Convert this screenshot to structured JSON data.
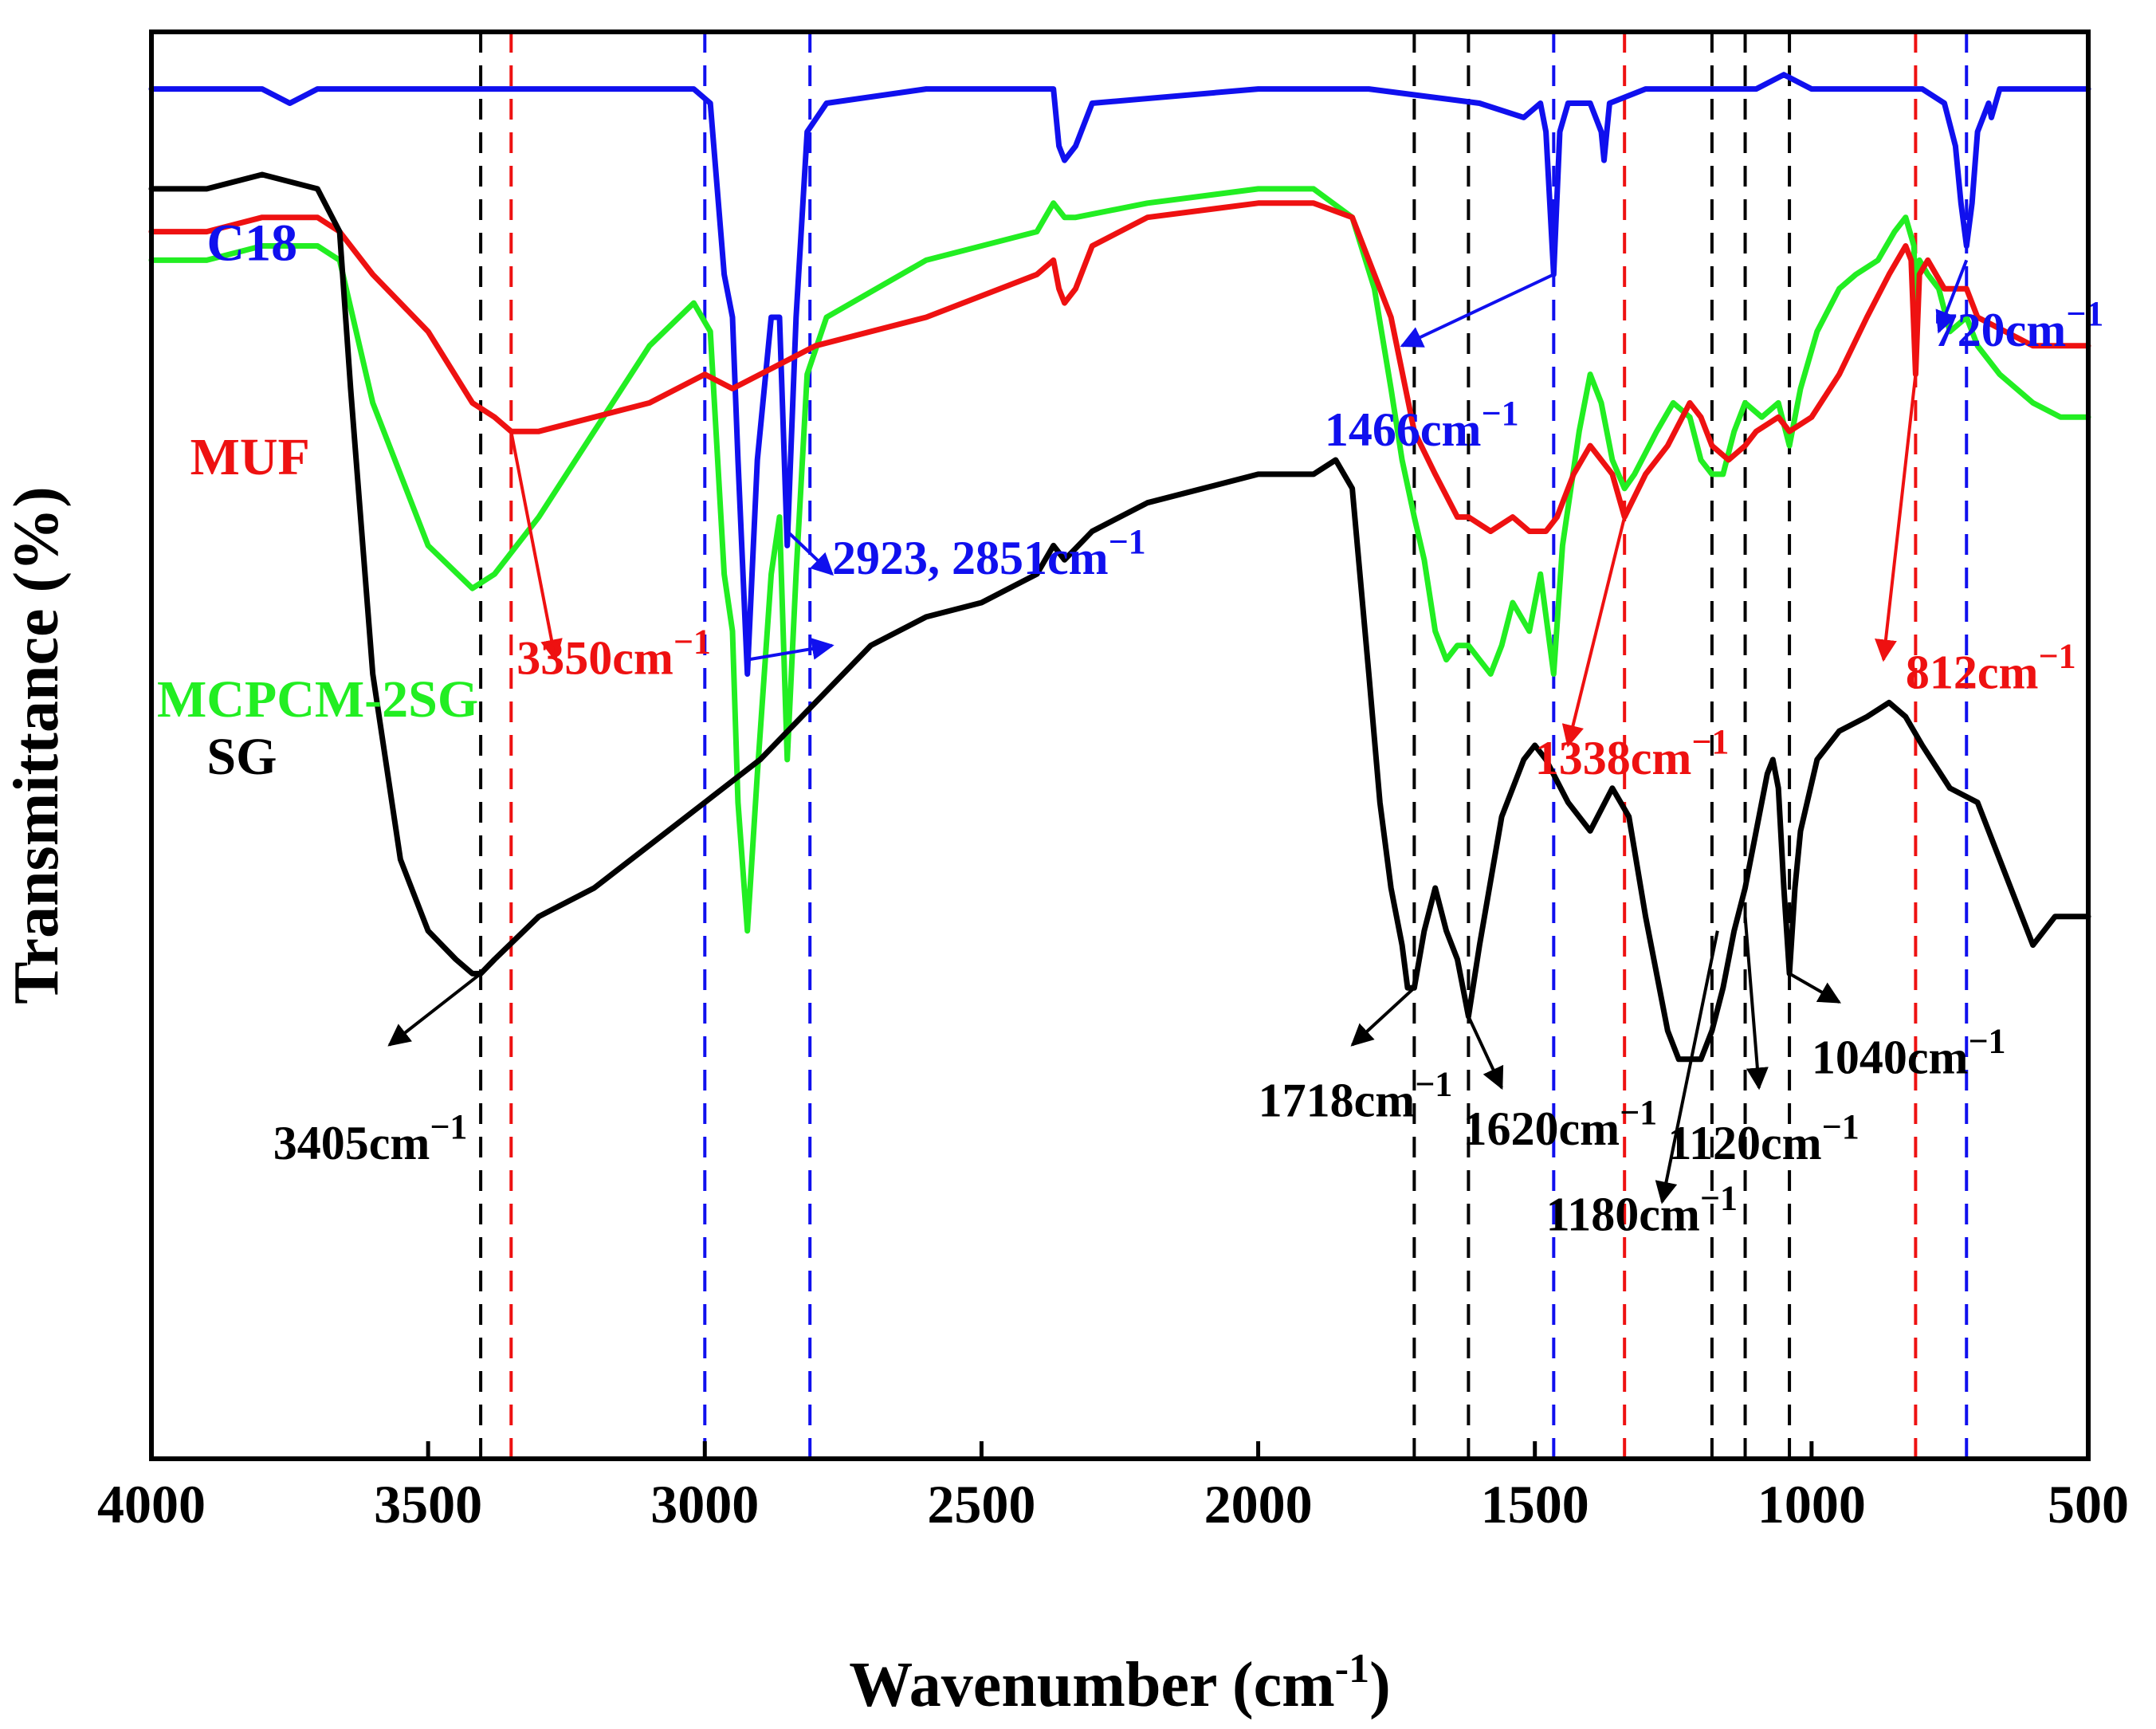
{
  "chart_data": {
    "type": "line",
    "title": "",
    "xlabel": "Wavenumber (cm",
    "xlabel_sup": "-1",
    "xlabel_close": ")",
    "ylabel": "Transmittance (%)",
    "xlim": [
      4000,
      500
    ],
    "x_inverted": true,
    "x_ticks": [
      4000,
      3500,
      3000,
      2500,
      2000,
      1500,
      1000,
      500
    ],
    "y_ticks": [],
    "grid": false,
    "legend": "inline labels",
    "series": [
      {
        "name": "MCPCM-2SG",
        "color": "#22ee22",
        "x": [
          4000,
          3900,
          3800,
          3700,
          3660,
          3600,
          3500,
          3420,
          3380,
          3300,
          3200,
          3100,
          3020,
          2990,
          2965,
          2950,
          2940,
          2923,
          2905,
          2880,
          2865,
          2851,
          2835,
          2815,
          2780,
          2600,
          2400,
          2370,
          2350,
          2330,
          2200,
          2000,
          1900,
          1830,
          1790,
          1760,
          1740,
          1718,
          1700,
          1680,
          1660,
          1640,
          1620,
          1600,
          1580,
          1560,
          1540,
          1510,
          1490,
          1466,
          1450,
          1420,
          1400,
          1380,
          1360,
          1338,
          1320,
          1280,
          1250,
          1220,
          1200,
          1180,
          1160,
          1140,
          1120,
          1090,
          1060,
          1040,
          1020,
          990,
          950,
          920,
          880,
          850,
          830,
          815,
          812,
          805,
          790,
          770,
          750,
          720,
          700,
          660,
          600,
          550,
          500
        ],
        "y": [
          84,
          84,
          85,
          85,
          84,
          74,
          64,
          61,
          62,
          66,
          72,
          78,
          81,
          79,
          62,
          58,
          46,
          37,
          48,
          62,
          66,
          49,
          62,
          76,
          80,
          84,
          86,
          88,
          87,
          87,
          88,
          89,
          89,
          87,
          82,
          75,
          70,
          66,
          63,
          58,
          56,
          57,
          57,
          56,
          55,
          57,
          60,
          58,
          62,
          55,
          64,
          72,
          76,
          74,
          70,
          68,
          69,
          72,
          74,
          73,
          70,
          69,
          69,
          72,
          74,
          73,
          74,
          71,
          75,
          79,
          82,
          83,
          84,
          86,
          87,
          85,
          80,
          84,
          83,
          82,
          79,
          80,
          78,
          76,
          74,
          73,
          73
        ]
      },
      {
        "name": "C18",
        "color": "#1010ee",
        "x": [
          4000,
          3800,
          3750,
          3700,
          3600,
          3400,
          3200,
          3020,
          2990,
          2965,
          2950,
          2940,
          2923,
          2905,
          2880,
          2865,
          2851,
          2835,
          2815,
          2780,
          2600,
          2400,
          2370,
          2360,
          2350,
          2330,
          2300,
          2000,
          1800,
          1600,
          1520,
          1490,
          1480,
          1466,
          1455,
          1440,
          1400,
          1380,
          1375,
          1365,
          1300,
          1200,
          1100,
          1050,
          1000,
          900,
          800,
          760,
          740,
          730,
          720,
          710,
          700,
          680,
          675,
          660,
          600,
          500
        ],
        "y": [
          96,
          96,
          95,
          96,
          96,
          96,
          96,
          96,
          95,
          83,
          80,
          70,
          55,
          70,
          80,
          80,
          64,
          80,
          93,
          95,
          96,
          96,
          96,
          92,
          91,
          92,
          95,
          96,
          96,
          95,
          94,
          95,
          93,
          83,
          93,
          95,
          95,
          93,
          91,
          95,
          96,
          96,
          96,
          97,
          96,
          96,
          96,
          95,
          92,
          88,
          85,
          88,
          93,
          95,
          94,
          96,
          96,
          96
        ]
      },
      {
        "name": "MUF",
        "color": "#ee1111",
        "x": [
          4000,
          3900,
          3800,
          3700,
          3660,
          3600,
          3500,
          3420,
          3380,
          3350,
          3300,
          3200,
          3100,
          3000,
          2950,
          2900,
          2800,
          2600,
          2400,
          2370,
          2360,
          2350,
          2330,
          2300,
          2200,
          2000,
          1900,
          1830,
          1800,
          1760,
          1718,
          1680,
          1640,
          1620,
          1580,
          1540,
          1510,
          1480,
          1460,
          1430,
          1400,
          1380,
          1360,
          1338,
          1300,
          1260,
          1220,
          1200,
          1180,
          1150,
          1120,
          1100,
          1060,
          1040,
          1000,
          950,
          900,
          860,
          830,
          820,
          812,
          805,
          790,
          760,
          720,
          700,
          650,
          600,
          500
        ],
        "y": [
          86,
          86,
          87,
          87,
          86,
          83,
          79,
          74,
          73,
          72,
          72,
          73,
          74,
          76,
          75,
          76,
          78,
          80,
          83,
          84,
          82,
          81,
          82,
          85,
          87,
          88,
          88,
          87,
          84,
          80,
          72,
          69,
          66,
          66,
          65,
          66,
          65,
          65,
          66,
          69,
          71,
          70,
          69,
          66,
          69,
          71,
          74,
          73,
          71,
          70,
          71,
          72,
          73,
          72,
          73,
          76,
          80,
          83,
          85,
          84,
          76,
          83,
          84,
          82,
          82,
          80,
          79,
          78,
          78
        ]
      },
      {
        "name": "SG",
        "color": "#000000",
        "x": [
          4000,
          3900,
          3800,
          3700,
          3660,
          3640,
          3600,
          3550,
          3500,
          3450,
          3420,
          3405,
          3380,
          3300,
          3200,
          3100,
          3000,
          2900,
          2800,
          2700,
          2600,
          2500,
          2400,
          2370,
          2350,
          2300,
          2200,
          2100,
          2000,
          1900,
          1860,
          1830,
          1800,
          1780,
          1760,
          1740,
          1730,
          1718,
          1700,
          1680,
          1660,
          1640,
          1620,
          1600,
          1560,
          1520,
          1500,
          1480,
          1440,
          1400,
          1360,
          1330,
          1300,
          1260,
          1240,
          1220,
          1200,
          1180,
          1160,
          1140,
          1120,
          1100,
          1080,
          1070,
          1060,
          1050,
          1040,
          1030,
          1020,
          990,
          950,
          900,
          860,
          830,
          800,
          750,
          700,
          660,
          620,
          600,
          560,
          500
        ],
        "y": [
          89,
          89,
          90,
          89,
          86,
          75,
          55,
          42,
          37,
          35,
          34,
          34,
          35,
          38,
          40,
          43,
          46,
          49,
          53,
          57,
          59,
          60,
          62,
          64,
          63,
          65,
          67,
          68,
          69,
          69,
          70,
          68,
          55,
          46,
          40,
          36,
          33,
          33,
          37,
          40,
          37,
          35,
          31,
          36,
          45,
          49,
          50,
          49,
          46,
          44,
          47,
          45,
          38,
          30,
          28,
          28,
          28,
          30,
          33,
          37,
          40,
          44,
          48,
          49,
          47,
          40,
          34,
          40,
          44,
          49,
          51,
          52,
          53,
          52,
          50,
          47,
          46,
          42,
          38,
          36,
          38,
          38
        ]
      }
    ],
    "series_labels": [
      {
        "series": "MCPCM-2SG",
        "text": "MCPCM-2SG",
        "color": "#22ee22",
        "x": 3990,
        "y": 52
      },
      {
        "series": "C18",
        "text": "C18",
        "color": "#1010ee",
        "x": 3900,
        "y": 84
      },
      {
        "series": "MUF",
        "text": "MUF",
        "color": "#ee1111",
        "x": 3930,
        "y": 69
      },
      {
        "series": "SG",
        "text": "SG",
        "color": "#000000",
        "x": 3900,
        "y": 48
      }
    ],
    "reference_lines": [
      {
        "x": 3405,
        "color": "#000000"
      },
      {
        "x": 3350,
        "color": "#ee1111"
      },
      {
        "x": 3000,
        "color": "#1010ee"
      },
      {
        "x": 2810,
        "color": "#1010ee"
      },
      {
        "x": 1718,
        "color": "#000000"
      },
      {
        "x": 1620,
        "color": "#000000"
      },
      {
        "x": 1466,
        "color": "#1010ee"
      },
      {
        "x": 1338,
        "color": "#ee1111"
      },
      {
        "x": 1180,
        "color": "#000000"
      },
      {
        "x": 1120,
        "color": "#000000"
      },
      {
        "x": 1040,
        "color": "#000000"
      },
      {
        "x": 812,
        "color": "#ee1111"
      },
      {
        "x": 720,
        "color": "#1010ee"
      }
    ],
    "annotations": [
      {
        "text": "2923, 2851cm",
        "sup": "−1",
        "color": "#1010ee",
        "x": 2770,
        "y": 62,
        "from": [
          2851,
          65
        ],
        "to": [
          2770,
          62
        ]
      },
      {
        "text": "",
        "sup": "",
        "color": "#1010ee",
        "x": 2770,
        "y": 57,
        "from": [
          2923,
          56
        ],
        "to": [
          2770,
          57
        ]
      },
      {
        "text": "1466cm",
        "sup": "−1",
        "color": "#1010ee",
        "x": 1880,
        "y": 71,
        "from": [
          1466,
          83
        ],
        "to": [
          1740,
          78
        ]
      },
      {
        "text": "720cm",
        "sup": "−1",
        "color": "#1010ee",
        "x": 780,
        "y": 78,
        "from": [
          720,
          84
        ],
        "to": [
          770,
          79
        ]
      },
      {
        "text": "3350cm",
        "sup": "−1",
        "color": "#ee1111",
        "x": 3340,
        "y": 55,
        "from": [
          3350,
          72
        ],
        "to": [
          3270,
          56
        ]
      },
      {
        "text": "1338cm",
        "sup": "−1",
        "color": "#ee1111",
        "x": 1500,
        "y": 48,
        "from": [
          1338,
          66
        ],
        "to": [
          1440,
          50
        ]
      },
      {
        "text": "812cm",
        "sup": "−1",
        "color": "#ee1111",
        "x": 830,
        "y": 54,
        "from": [
          812,
          76
        ],
        "to": [
          870,
          56
        ]
      },
      {
        "text": "3405cm",
        "sup": "−1",
        "color": "#000000",
        "x": 3780,
        "y": 21,
        "from": [
          3405,
          34
        ],
        "to": [
          3570,
          29
        ]
      },
      {
        "text": "1718cm",
        "sup": "−1",
        "color": "#000000",
        "x": 2000,
        "y": 24,
        "from": [
          1718,
          33
        ],
        "to": [
          1830,
          29
        ]
      },
      {
        "text": "1620cm",
        "sup": "−1",
        "color": "#000000",
        "x": 1630,
        "y": 22,
        "from": [
          1620,
          31
        ],
        "to": [
          1560,
          26
        ]
      },
      {
        "text": "1180cm",
        "sup": "−1",
        "color": "#000000",
        "x": 1480,
        "y": 16,
        "from": [
          1170,
          37
        ],
        "to": [
          1270,
          18
        ]
      },
      {
        "text": "1120cm",
        "sup": "−1",
        "color": "#000000",
        "x": 1260,
        "y": 21,
        "from": [
          1120,
          38
        ],
        "to": [
          1095,
          26
        ]
      },
      {
        "text": "1040cm",
        "sup": "−1",
        "color": "#000000",
        "x": 1000,
        "y": 27,
        "from": [
          1040,
          34
        ],
        "to": [
          950,
          32
        ]
      }
    ]
  }
}
